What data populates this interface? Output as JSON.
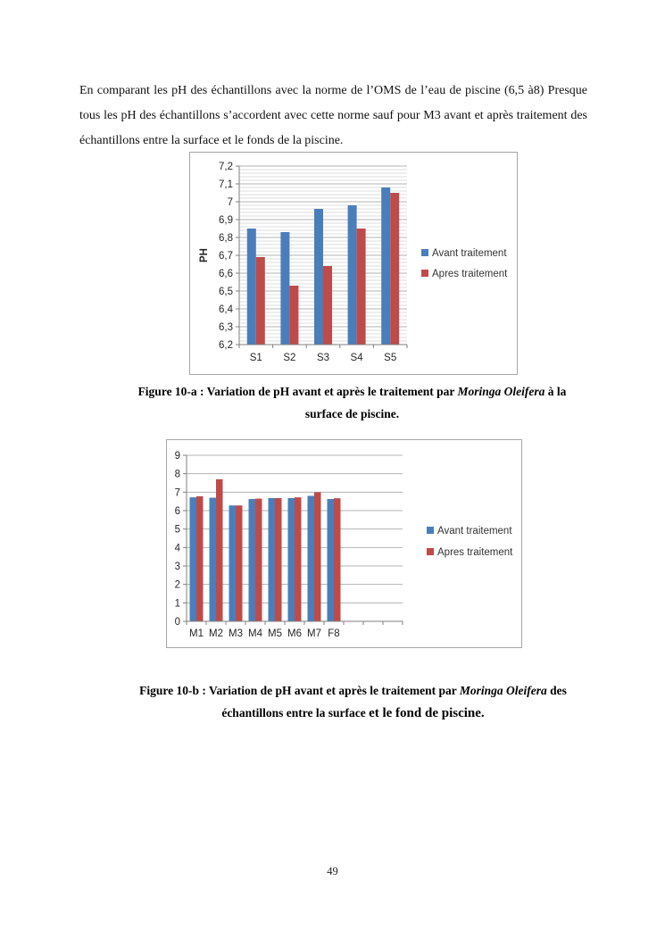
{
  "paragraph": {
    "text": "En comparant les pH des échantillons avec la norme de l’OMS de l’eau de piscine (6,5 à8) Presque tous les pH des échantillons s’accordent avec cette norme sauf pour M3 avant et après traitement des échantillons entre la surface et le fonds de  la piscine."
  },
  "captions": {
    "fig10a": {
      "prefix": "Figure 10-a : Variation de pH avant et après le traitement par ",
      "italic": "Moringa Oleifera",
      "suffix": " à la",
      "line2": "surface de piscine."
    },
    "fig10b": {
      "prefix": "Figure 10-b : Variation de pH avant et après le traitement par ",
      "italic": "Moringa Oleifera",
      "suffix": " des",
      "line2a": "échantillons entre la surface ",
      "line2b": "et le fond de piscine."
    }
  },
  "chart_data": [
    {
      "type": "bar",
      "title": "",
      "xlabel": "",
      "ylabel": "PH",
      "categories": [
        "S1",
        "S2",
        "S3",
        "S4",
        "S5"
      ],
      "series": [
        {
          "name": "Avant traitement",
          "color": "#4a7ebb",
          "values": [
            6.85,
            6.83,
            6.96,
            6.98,
            7.08
          ]
        },
        {
          "name": "Apres traitement",
          "color": "#be4b48",
          "values": [
            6.69,
            6.53,
            6.64,
            6.85,
            7.05
          ]
        }
      ],
      "ylim": [
        6.2,
        7.2
      ],
      "ymajor": 0.1,
      "yminor": 0.02,
      "ytick_labels": [
        "7,2",
        "7,1",
        "7",
        "6,9",
        "6,8",
        "6,7",
        "6,6",
        "6,5",
        "6,4",
        "6,3",
        "6,2"
      ],
      "grid": "horizontal-major-and-minor",
      "legend_position": "right"
    },
    {
      "type": "bar",
      "title": "",
      "xlabel": "",
      "ylabel": "",
      "categories": [
        "M1",
        "M2",
        "M3",
        "M4",
        "M5",
        "M6",
        "M7",
        "F8",
        "",
        "",
        ""
      ],
      "series": [
        {
          "name": "Avant traitement",
          "color": "#4a7ebb",
          "values": [
            6.72,
            6.7,
            6.28,
            6.63,
            6.68,
            6.68,
            6.8,
            6.63
          ]
        },
        {
          "name": "Apres traitement",
          "color": "#be4b48",
          "values": [
            6.78,
            7.7,
            6.28,
            6.65,
            6.68,
            6.72,
            7.0,
            6.67
          ]
        }
      ],
      "ylim": [
        0,
        9
      ],
      "ymajor": 1,
      "yminor": 0,
      "ytick_labels": [
        "9",
        "8",
        "7",
        "6",
        "5",
        "4",
        "3",
        "2",
        "1",
        "0"
      ],
      "grid": "horizontal-major",
      "legend_position": "right"
    }
  ],
  "page": {
    "number": "49"
  }
}
